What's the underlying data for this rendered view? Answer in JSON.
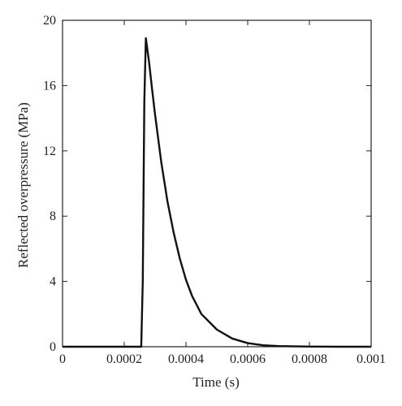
{
  "chart_data": {
    "type": "line",
    "title": "",
    "xlabel": "Time (s)",
    "ylabel": "Reflected overpressure (MPa)",
    "xlim": [
      0,
      0.001
    ],
    "ylim": [
      0,
      20
    ],
    "x_ticks": [
      0,
      0.0002,
      0.0004,
      0.0006,
      0.0008,
      0.001
    ],
    "x_tick_labels": [
      "0",
      "0.0002",
      "0.0004",
      "0.0006",
      "0.0008",
      "0.001"
    ],
    "y_ticks": [
      0,
      4,
      8,
      12,
      16,
      20
    ],
    "y_tick_labels": [
      "0",
      "4",
      "8",
      "12",
      "16",
      "20"
    ],
    "grid": false,
    "line_color": "#111111",
    "series": [
      {
        "x": [
          0,
          0.0002,
          0.00025,
          0.000255,
          0.00026,
          0.000265,
          0.00027,
          0.00028,
          0.00029,
          0.0003,
          0.00032,
          0.00034,
          0.00036,
          0.00038,
          0.0004,
          0.00042,
          0.00045,
          0.0005,
          0.00055,
          0.0006,
          0.00065,
          0.0007,
          0.0008,
          0.0009,
          0.001
        ],
        "y": [
          0,
          0,
          0,
          0,
          4.0,
          15.0,
          18.9,
          17.5,
          15.8,
          14.2,
          11.3,
          8.9,
          7.0,
          5.4,
          4.1,
          3.1,
          2.0,
          1.05,
          0.5,
          0.22,
          0.09,
          0.04,
          0.01,
          0,
          0
        ]
      }
    ]
  }
}
